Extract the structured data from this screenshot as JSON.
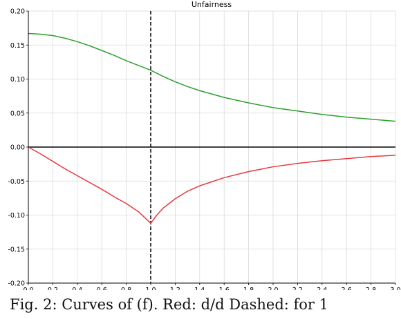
{
  "chart_data": {
    "type": "line",
    "title": "Unfairness",
    "xlabel": "",
    "ylabel": "",
    "xlim": [
      0.0,
      3.0
    ],
    "ylim": [
      -0.2,
      0.2
    ],
    "x_ticks": [
      "0.0",
      "0.2",
      "0.4",
      "0.6",
      "0.8",
      "1.0",
      "1.2",
      "1.4",
      "1.6",
      "1.8",
      "2.0",
      "2.2",
      "2.4",
      "2.6",
      "2.8",
      "3.0"
    ],
    "y_ticks": [
      "-0.20",
      "-0.15",
      "-0.10",
      "-0.05",
      "0.00",
      "0.05",
      "0.10",
      "0.15",
      "0.20"
    ],
    "grid": true,
    "reference_lines": {
      "horizontal_y": 0.0,
      "vertical_dashed_x": 1.0
    },
    "series": [
      {
        "color": "#2ca02c",
        "x": [
          0.0,
          0.1,
          0.2,
          0.3,
          0.4,
          0.5,
          0.6,
          0.7,
          0.8,
          0.9,
          1.0,
          1.1,
          1.2,
          1.3,
          1.4,
          1.6,
          1.8,
          2.0,
          2.2,
          2.4,
          2.6,
          2.8,
          3.0
        ],
        "y": [
          0.167,
          0.166,
          0.164,
          0.16,
          0.155,
          0.149,
          0.142,
          0.135,
          0.127,
          0.12,
          0.113,
          0.104,
          0.096,
          0.089,
          0.083,
          0.073,
          0.065,
          0.058,
          0.053,
          0.048,
          0.044,
          0.041,
          0.038
        ]
      },
      {
        "color": "#e8383d",
        "x": [
          0.0,
          0.1,
          0.2,
          0.3,
          0.4,
          0.5,
          0.6,
          0.7,
          0.8,
          0.9,
          1.0,
          1.05,
          1.1,
          1.2,
          1.3,
          1.4,
          1.6,
          1.8,
          2.0,
          2.2,
          2.4,
          2.6,
          2.8,
          3.0
        ],
        "y": [
          0.0,
          -0.01,
          -0.021,
          -0.032,
          -0.042,
          -0.052,
          -0.062,
          -0.073,
          -0.083,
          -0.095,
          -0.112,
          -0.1,
          -0.09,
          -0.076,
          -0.065,
          -0.057,
          -0.045,
          -0.036,
          -0.029,
          -0.024,
          -0.02,
          -0.017,
          -0.014,
          -0.012
        ]
      }
    ],
    "colors": {
      "axis": "#000000",
      "grid": "#d9d9d9"
    }
  },
  "caption": "Fig. 2: Curves of (f). Red: d/d   Dashed:  for 1"
}
